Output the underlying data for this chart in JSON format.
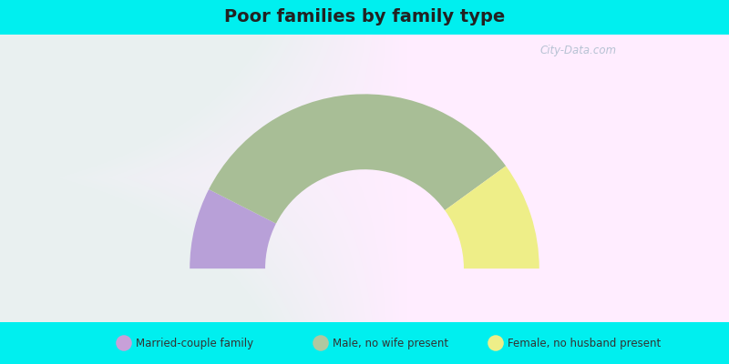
{
  "title": "Poor families by family type",
  "title_fontsize": 14,
  "bg_color": "#00EFEF",
  "segments": [
    {
      "label": "Married-couple family",
      "value": 15,
      "color": "#b8a0d8"
    },
    {
      "label": "Male, no wife present",
      "value": 65,
      "color": "#a8be96"
    },
    {
      "label": "Female, no husband present",
      "value": 20,
      "color": "#eeee88"
    }
  ],
  "legend_labels": [
    "Married-couple family",
    "Male, no wife present",
    "Female, no husband present"
  ],
  "legend_colors": [
    "#c8a0d8",
    "#b0c8a0",
    "#eeee88"
  ],
  "watermark": "City-Data.com",
  "outer_r": 0.88,
  "inner_r": 0.5
}
